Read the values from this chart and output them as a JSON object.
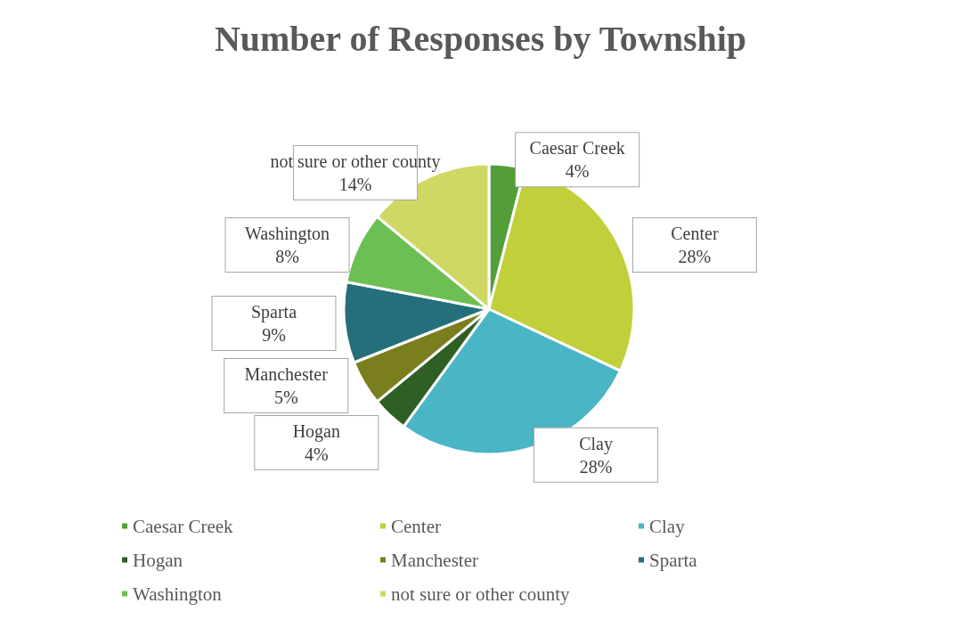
{
  "chart_data": {
    "type": "pie",
    "title": "Number of Responses by Township",
    "categories": [
      "Caesar Creek",
      "Center",
      "Clay",
      "Hogan",
      "Manchester",
      "Sparta",
      "Washington",
      "not sure or other county"
    ],
    "values": [
      4,
      28,
      28,
      4,
      5,
      9,
      8,
      14
    ],
    "colors": [
      "#549e39",
      "#c0cf3a",
      "#4ab5c4",
      "#2f5f24",
      "#7a7e1d",
      "#256f7a",
      "#6cbf52",
      "#cfd863"
    ],
    "value_labels": [
      "4%",
      "28%",
      "28%",
      "4%",
      "5%",
      "9%",
      "8%",
      "14%"
    ],
    "legend": "bottom"
  }
}
